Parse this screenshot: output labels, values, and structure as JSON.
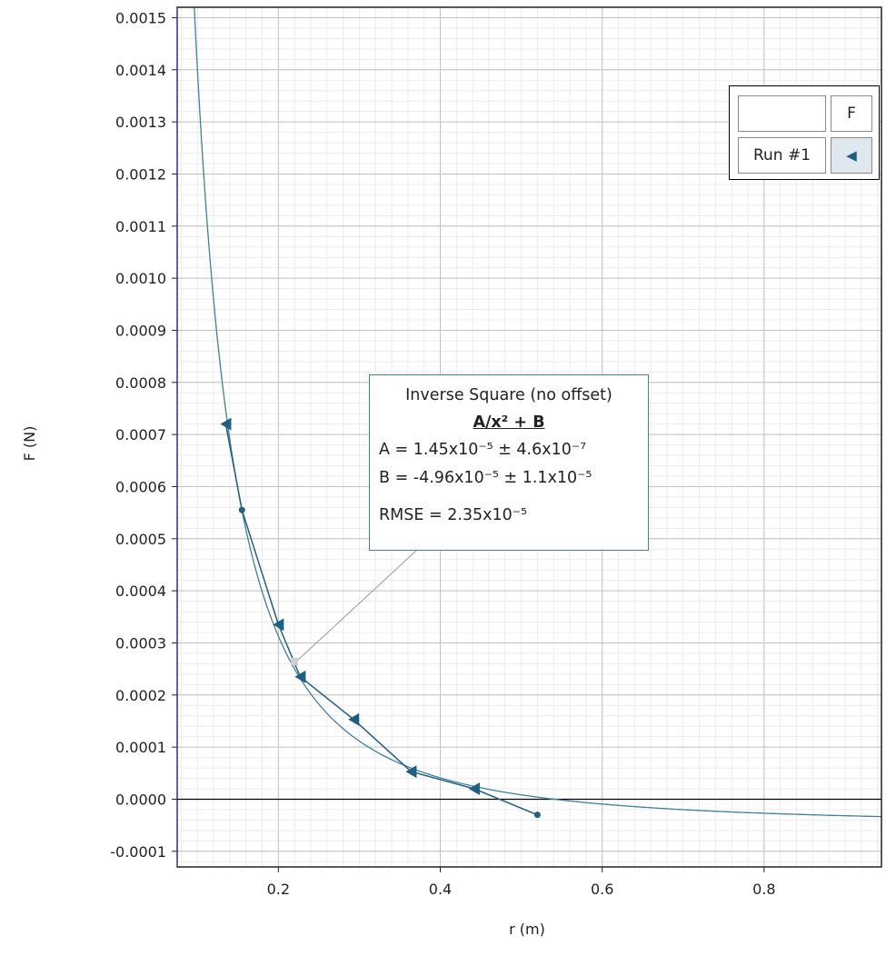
{
  "chart_data": {
    "type": "scatter",
    "xlabel": "r (m)",
    "ylabel": "F (N)",
    "xlim": [
      0.075,
      0.945
    ],
    "ylim": [
      -0.00013,
      0.00152
    ],
    "x_ticks": [
      "0.2",
      "0.4",
      "0.6",
      "0.8"
    ],
    "x_tick_values": [
      0.2,
      0.4,
      0.6,
      0.8
    ],
    "y_ticks": [
      "-0.0001",
      "0.0000",
      "0.0001",
      "0.0002",
      "0.0003",
      "0.0004",
      "0.0005",
      "0.0006",
      "0.0007",
      "0.0008",
      "0.0009",
      "0.0010",
      "0.0011",
      "0.0012",
      "0.0013",
      "0.0014",
      "0.0015"
    ],
    "y_tick_values": [
      -0.0001,
      0.0,
      0.0001,
      0.0002,
      0.0003,
      0.0004,
      0.0005,
      0.0006,
      0.0007,
      0.0008,
      0.0009,
      0.001,
      0.0011,
      0.0012,
      0.0013,
      0.0014,
      0.0015
    ],
    "grid": true,
    "legend_position": "top-right",
    "series": [
      {
        "name": "Run #1",
        "color": "#1f5f82",
        "marker": "triangle-left",
        "x": [
          0.135,
          0.155,
          0.2,
          0.227,
          0.293,
          0.364,
          0.442,
          0.52
        ],
        "y": [
          0.00072,
          0.000555,
          0.000335,
          0.000235,
          0.000153,
          5.3e-05,
          2e-05,
          -3e-05
        ]
      }
    ],
    "fit": {
      "model": "A/x² + B",
      "A": 1.45e-05,
      "B": -4.96e-05,
      "color": "#3f7fa0"
    }
  },
  "legend": {
    "header_blank": "",
    "header_label": "F",
    "run_label": "Run #1",
    "run_symbol": "◀"
  },
  "fit_box": {
    "title": "Inverse Square (no offset)",
    "equation": "A/x² + B",
    "a_line": "A = 1.45x10⁻⁵  ± 4.6x10⁻⁷",
    "b_line": "B = -4.96x10⁻⁵ ± 1.1x10⁻⁵",
    "rmse_line": "RMSE = 2.35x10⁻⁵"
  }
}
